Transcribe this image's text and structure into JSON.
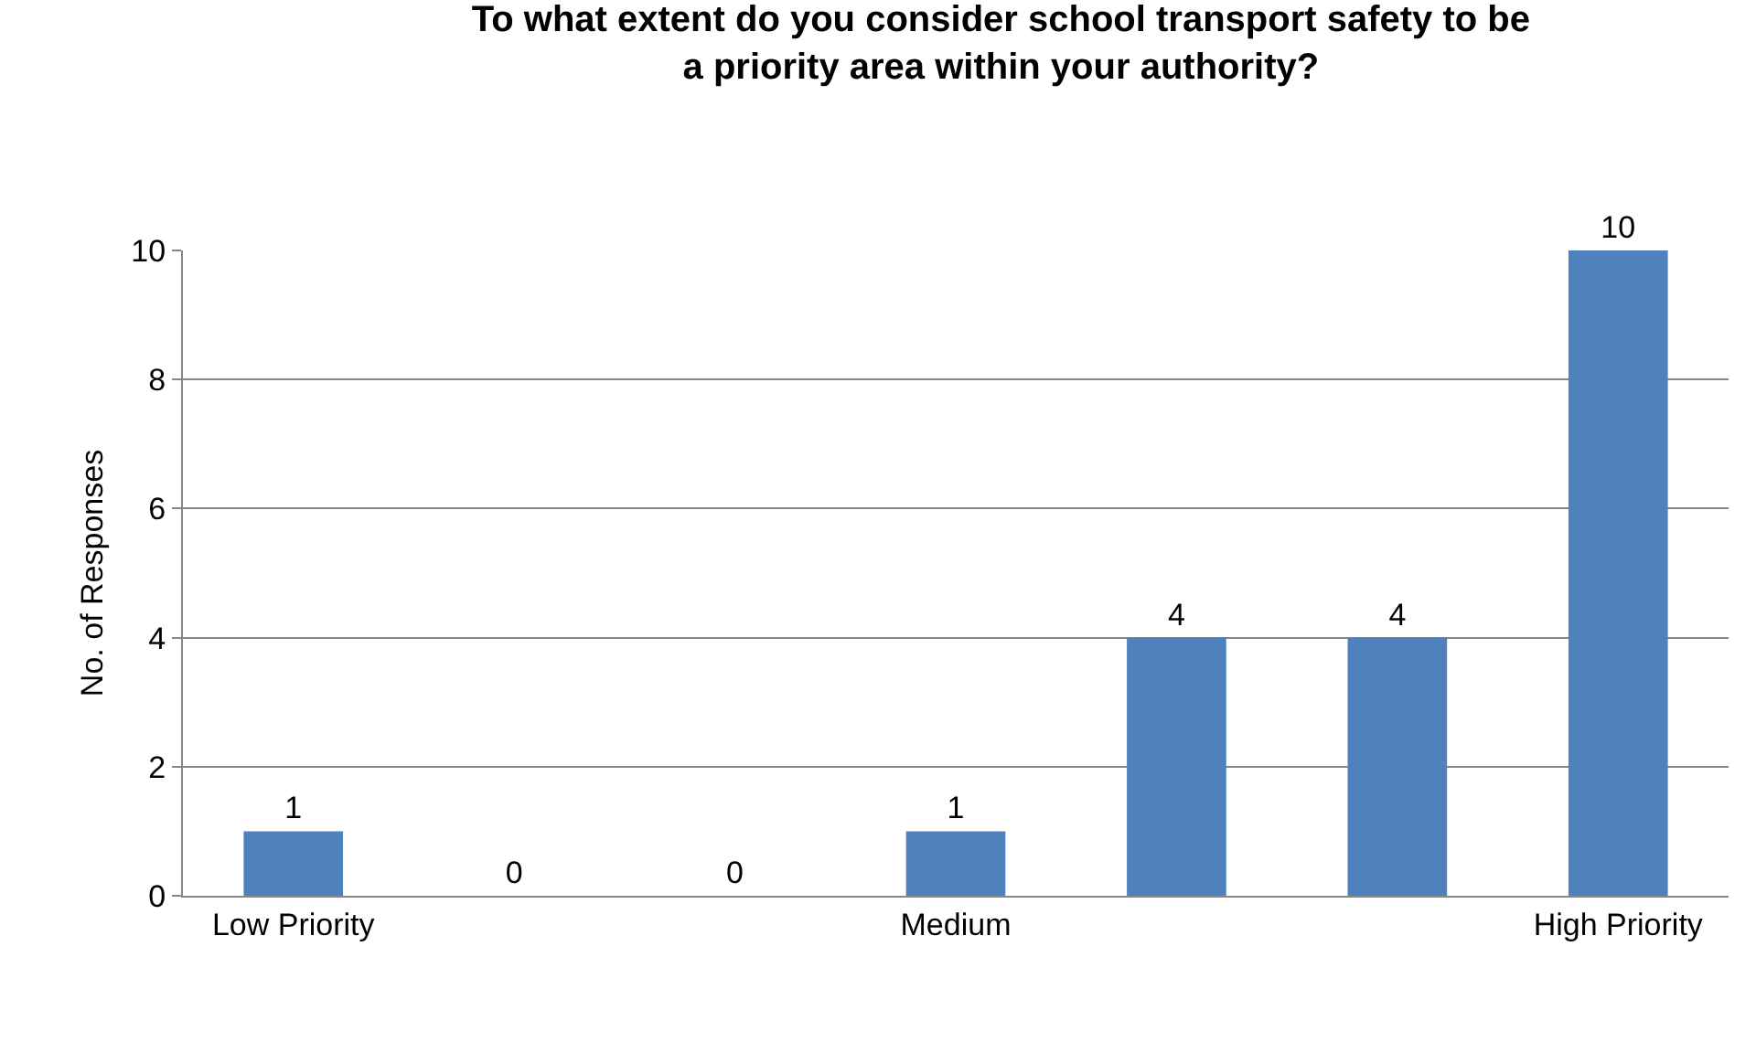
{
  "chart_data": {
    "type": "bar",
    "title": "To what extent do you consider school transport safety to be\na priority area within your authority?",
    "ylabel": "No. of Responses",
    "categories": [
      "Low Priority",
      null,
      null,
      "Medium",
      null,
      null,
      "High Priority"
    ],
    "values": [
      1,
      0,
      0,
      1,
      4,
      4,
      10
    ],
    "color": "#4f81bd",
    "ylim": [
      0,
      10
    ],
    "yticks": [
      0,
      2,
      4,
      6,
      8,
      10
    ],
    "grid": "y",
    "data_labels": true,
    "legend": false
  }
}
